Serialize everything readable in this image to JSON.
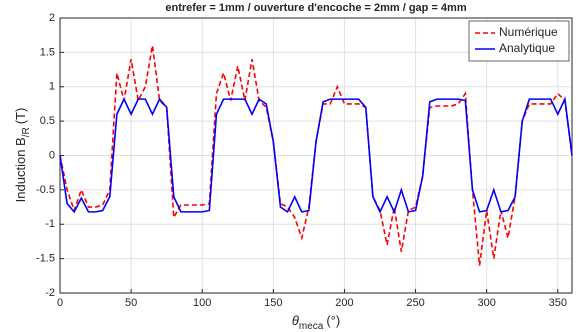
{
  "chart_data": {
    "type": "line",
    "title": "entrefer = 1mm / ouverture d'encoche = 2mm / gap = 4mm",
    "xlabel": {
      "symbol": "θ",
      "sub": "meca",
      "unit": "(°)"
    },
    "ylabel": {
      "main": "Induction B",
      "sub": "/R",
      "unit": "(T)"
    },
    "x": [
      0,
      5,
      10,
      15,
      20,
      25,
      30,
      35,
      40,
      45,
      50,
      55,
      60,
      65,
      70,
      75,
      80,
      85,
      90,
      95,
      100,
      105,
      110,
      115,
      120,
      125,
      130,
      135,
      140,
      145,
      150,
      155,
      160,
      165,
      170,
      175,
      180,
      185,
      190,
      195,
      200,
      205,
      210,
      215,
      220,
      225,
      230,
      235,
      240,
      245,
      250,
      255,
      260,
      265,
      270,
      275,
      280,
      285,
      290,
      295,
      300,
      305,
      310,
      315,
      320,
      325,
      330,
      335,
      340,
      345,
      350,
      355,
      360
    ],
    "series": [
      {
        "name": "Numérique",
        "color": "#ff0000",
        "dash": true,
        "values": [
          0,
          -0.5,
          -0.8,
          -0.5,
          -0.75,
          -0.75,
          -0.72,
          -0.5,
          1.2,
          0.8,
          1.4,
          0.8,
          1.0,
          1.6,
          0.8,
          0.7,
          -0.9,
          -0.72,
          -0.72,
          -0.72,
          -0.72,
          -0.7,
          0.9,
          1.2,
          0.8,
          1.3,
          0.8,
          1.4,
          0.8,
          0.7,
          0.2,
          -0.7,
          -0.75,
          -0.9,
          -1.2,
          -0.75,
          0.2,
          0.75,
          0.75,
          1.0,
          0.75,
          0.75,
          0.75,
          0.7,
          -0.6,
          -0.8,
          -1.3,
          -0.75,
          -1.4,
          -0.8,
          -0.75,
          -0.3,
          0.7,
          0.72,
          0.72,
          0.72,
          0.75,
          0.9,
          -0.5,
          -1.6,
          -0.8,
          -1.5,
          -0.8,
          -1.2,
          -0.6,
          0.5,
          0.75,
          0.75,
          0.75,
          0.75,
          0.9,
          0.8,
          0
        ]
      },
      {
        "name": "Analytique",
        "color": "#0000ff",
        "dash": false,
        "values": [
          0,
          -0.7,
          -0.82,
          -0.62,
          -0.82,
          -0.82,
          -0.8,
          -0.6,
          0.6,
          0.82,
          0.6,
          0.82,
          0.82,
          0.6,
          0.82,
          0.7,
          -0.6,
          -0.82,
          -0.82,
          -0.82,
          -0.82,
          -0.8,
          0.6,
          0.82,
          0.82,
          0.82,
          0.82,
          0.6,
          0.82,
          0.75,
          0.2,
          -0.75,
          -0.82,
          -0.6,
          -0.82,
          -0.8,
          0.2,
          0.78,
          0.82,
          0.82,
          0.82,
          0.82,
          0.82,
          0.7,
          -0.6,
          -0.82,
          -0.6,
          -0.82,
          -0.5,
          -0.82,
          -0.8,
          -0.3,
          0.78,
          0.82,
          0.82,
          0.82,
          0.82,
          0.8,
          -0.5,
          -0.82,
          -0.8,
          -0.5,
          -0.82,
          -0.8,
          -0.6,
          0.5,
          0.82,
          0.82,
          0.82,
          0.82,
          0.6,
          0.82,
          0
        ]
      }
    ],
    "xlim": [
      0,
      360
    ],
    "xticks": [
      0,
      50,
      100,
      150,
      200,
      250,
      300,
      350
    ],
    "ylim": [
      -2,
      2
    ],
    "yticks": [
      -2,
      -1.5,
      -1,
      -0.5,
      0,
      0.5,
      1,
      1.5,
      2
    ],
    "grid": true,
    "legend": "top-right"
  }
}
